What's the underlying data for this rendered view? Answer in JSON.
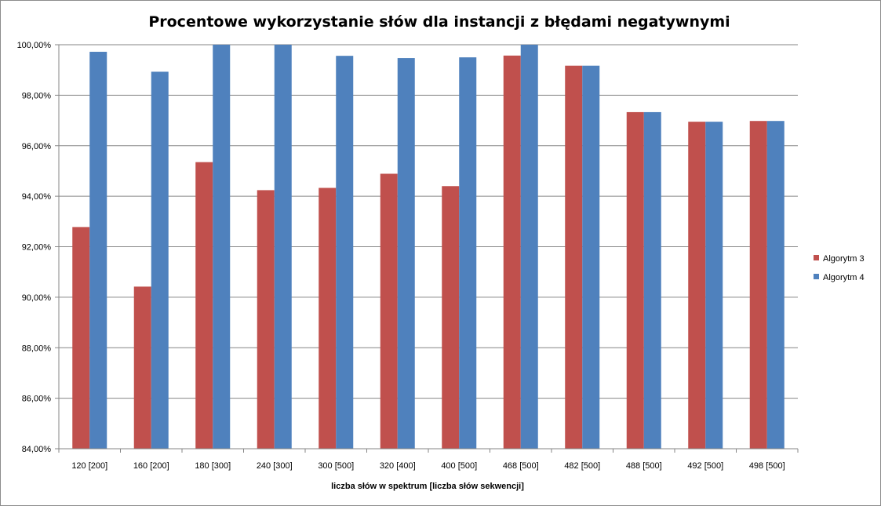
{
  "chart_data": {
    "type": "bar",
    "title": "Procentowe wykorzystanie słów dla instancji z błędami negatywnymi",
    "xlabel": "liczba słów w spektrum [liczba  słów sekwencji]",
    "ylabel": "",
    "ylim": [
      84,
      100
    ],
    "yticks": [
      84,
      86,
      88,
      90,
      92,
      94,
      96,
      98,
      100
    ],
    "ytick_labels": [
      "84,00%",
      "86,00%",
      "88,00%",
      "90,00%",
      "92,00%",
      "94,00%",
      "96,00%",
      "98,00%",
      "100,00%"
    ],
    "grid": true,
    "legend_position": "right",
    "categories": [
      "120 [200]",
      "160 [200]",
      "180 [300]",
      "240 [300]",
      "300 [500]",
      "320 [400]",
      "400 [500]",
      "468 [500]",
      "482 [500]",
      "488 [500]",
      "492 [500]",
      "498 [500]"
    ],
    "series": [
      {
        "name": "Algorytm 3",
        "color": "#c0504d",
        "values": [
          92.78,
          90.42,
          95.35,
          94.24,
          94.33,
          94.89,
          94.4,
          99.57,
          99.17,
          97.33,
          96.95,
          96.98
        ]
      },
      {
        "name": "Algorytm 4",
        "color": "#4f81bd",
        "values": [
          99.72,
          98.93,
          100.0,
          100.0,
          99.56,
          99.47,
          99.5,
          100.0,
          99.17,
          97.33,
          96.95,
          96.98
        ]
      }
    ]
  }
}
